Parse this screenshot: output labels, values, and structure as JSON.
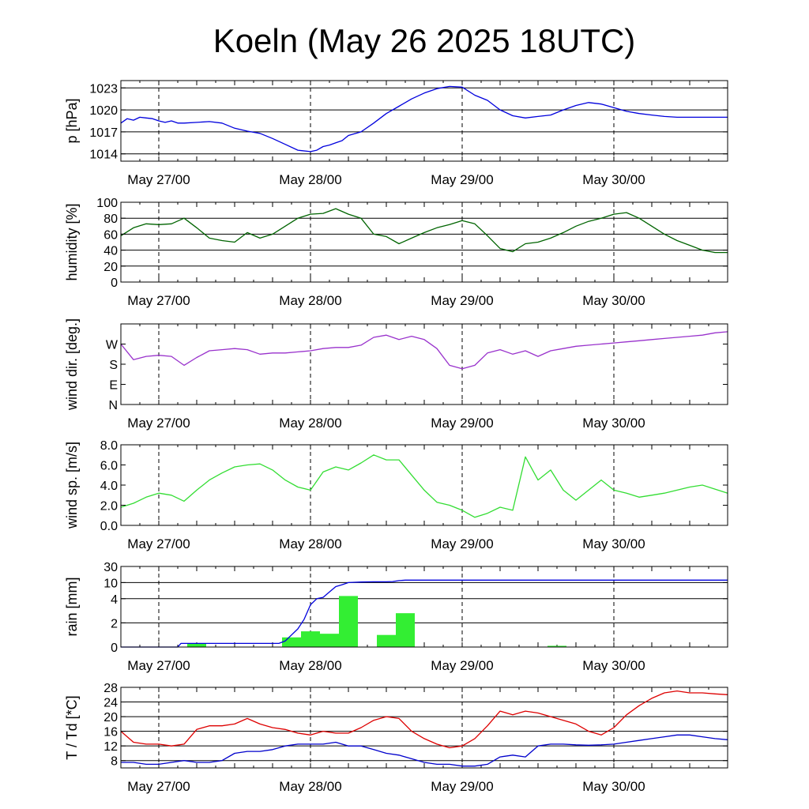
{
  "title": "Koeln (May 26 2025 18UTC)",
  "x_tick_labels": [
    "May 27/00",
    "May 28/00",
    "May 29/00",
    "May 30/00"
  ],
  "chart_data": [
    {
      "type": "line",
      "ylabel": "p [hPa]",
      "ylim": [
        1013,
        1024
      ],
      "yticks": [
        1014,
        1017,
        1020,
        1023
      ],
      "ytick_labels": [
        "1014",
        "1017",
        "1020",
        "1023"
      ],
      "grid": true,
      "x_unit": "hours from May 26 18UTC",
      "xlim": [
        0,
        96
      ],
      "x": [
        0,
        1,
        2,
        3,
        4,
        5,
        6,
        7,
        8,
        9,
        10,
        12,
        14,
        16,
        18,
        20,
        22,
        24,
        26,
        28,
        30,
        31,
        32,
        33,
        34,
        35,
        36,
        38,
        40,
        42,
        44,
        46,
        48,
        50,
        52,
        54,
        56,
        58,
        60,
        62,
        64,
        66,
        68,
        70,
        72,
        74,
        76,
        78,
        80,
        82,
        84,
        86,
        88,
        90,
        92,
        94,
        96
      ],
      "series": [
        {
          "color": "#0000dd",
          "values": [
            1018.2,
            1018.8,
            1018.6,
            1019.0,
            1018.9,
            1018.8,
            1018.5,
            1018.3,
            1018.5,
            1018.2,
            1018.2,
            1018.3,
            1018.4,
            1018.2,
            1017.5,
            1017.1,
            1016.8,
            1016.1,
            1015.3,
            1014.5,
            1014.3,
            1014.5,
            1015.0,
            1015.2,
            1015.5,
            1015.8,
            1016.5,
            1017.0,
            1018.2,
            1019.5,
            1020.5,
            1021.5,
            1022.3,
            1022.9,
            1023.2,
            1023.1,
            1022.0,
            1021.3,
            1020.0,
            1019.2,
            1018.9,
            1019.1,
            1019.3,
            1020.0,
            1020.6,
            1021.0,
            1020.8,
            1020.3,
            1019.8,
            1019.5,
            1019.3,
            1019.1,
            1019.0,
            1019.0,
            1019.0,
            1019.0,
            1019.0
          ]
        }
      ]
    },
    {
      "type": "line",
      "ylabel": "humidity [%]",
      "ylim": [
        0,
        100
      ],
      "yticks": [
        0,
        20,
        40,
        60,
        80,
        100
      ],
      "ytick_labels": [
        "0",
        "20",
        "40",
        "60",
        "80",
        "100"
      ],
      "grid": true,
      "x_unit": "hours from May 26 18UTC",
      "xlim": [
        0,
        96
      ],
      "x": [
        0,
        2,
        4,
        6,
        8,
        10,
        12,
        14,
        16,
        18,
        20,
        22,
        24,
        26,
        28,
        30,
        32,
        34,
        36,
        38,
        40,
        42,
        44,
        46,
        48,
        50,
        52,
        54,
        56,
        58,
        60,
        62,
        64,
        66,
        68,
        70,
        72,
        74,
        76,
        78,
        80,
        82,
        84,
        86,
        88,
        90,
        92,
        94,
        96
      ],
      "series": [
        {
          "color": "#006400",
          "values": [
            58,
            68,
            73,
            72,
            73,
            80,
            68,
            55,
            52,
            50,
            62,
            55,
            60,
            70,
            80,
            85,
            86,
            92,
            85,
            80,
            60,
            57,
            48,
            55,
            62,
            68,
            72,
            77,
            73,
            58,
            42,
            38,
            48,
            50,
            55,
            62,
            70,
            76,
            80,
            85,
            87,
            80,
            70,
            60,
            52,
            46,
            40,
            37,
            37
          ]
        }
      ]
    },
    {
      "type": "line",
      "ylabel": "wind dir. [deg.]",
      "ylim": [
        0,
        360
      ],
      "yticks": [
        0,
        90,
        180,
        270
      ],
      "ytick_labels": [
        "N",
        "E",
        "S",
        "W"
      ],
      "grid": false,
      "x_unit": "hours from May 26 18UTC",
      "xlim": [
        0,
        96
      ],
      "x": [
        0,
        2,
        4,
        6,
        8,
        10,
        12,
        14,
        16,
        18,
        20,
        22,
        24,
        26,
        28,
        30,
        32,
        34,
        36,
        38,
        40,
        42,
        44,
        46,
        48,
        50,
        52,
        54,
        56,
        58,
        60,
        62,
        64,
        66,
        68,
        70,
        72,
        74,
        76,
        78,
        80,
        82,
        84,
        86,
        88,
        90,
        92,
        94,
        96
      ],
      "series": [
        {
          "color": "#9932cc",
          "values": [
            270,
            200,
            215,
            220,
            215,
            175,
            210,
            240,
            245,
            250,
            245,
            225,
            230,
            230,
            235,
            240,
            250,
            255,
            255,
            265,
            300,
            310,
            290,
            305,
            290,
            250,
            175,
            160,
            175,
            230,
            245,
            225,
            240,
            215,
            240,
            250,
            260,
            265,
            270,
            275,
            280,
            285,
            290,
            295,
            300,
            305,
            310,
            320,
            325
          ]
        }
      ]
    },
    {
      "type": "line",
      "ylabel": "wind sp. [m/s]",
      "ylim": [
        0,
        8
      ],
      "yticks": [
        0,
        2,
        4,
        6,
        8
      ],
      "ytick_labels": [
        "0.0",
        "2.0",
        "4.0",
        "6.0",
        "8.0"
      ],
      "grid": false,
      "x_unit": "hours from May 26 18UTC",
      "xlim": [
        0,
        96
      ],
      "x": [
        0,
        2,
        4,
        6,
        8,
        10,
        12,
        14,
        16,
        18,
        20,
        22,
        24,
        26,
        28,
        30,
        32,
        34,
        36,
        38,
        40,
        42,
        44,
        46,
        48,
        50,
        52,
        54,
        56,
        58,
        60,
        62,
        64,
        66,
        68,
        70,
        72,
        74,
        76,
        78,
        80,
        82,
        84,
        86,
        88,
        90,
        92,
        94,
        96
      ],
      "series": [
        {
          "color": "#33dd33",
          "values": [
            1.8,
            2.2,
            2.8,
            3.2,
            3.0,
            2.4,
            3.5,
            4.5,
            5.2,
            5.8,
            6.0,
            6.1,
            5.5,
            4.5,
            3.8,
            3.5,
            5.3,
            5.8,
            5.5,
            6.2,
            7.0,
            6.5,
            6.5,
            5.0,
            3.5,
            2.3,
            2.0,
            1.5,
            0.8,
            1.2,
            1.8,
            1.5,
            6.8,
            4.5,
            5.5,
            3.5,
            2.5,
            3.5,
            4.5,
            3.5,
            3.2,
            2.8,
            3.0,
            3.2,
            3.5,
            3.8,
            4.0,
            3.6,
            3.2
          ]
        }
      ]
    },
    {
      "type": "bar",
      "ylabel": "rain [mm]",
      "ylim": [
        0,
        30
      ],
      "yticks": [
        0,
        2,
        4,
        10,
        30
      ],
      "ytick_labels": [
        "0",
        "2",
        "4",
        "10",
        "30"
      ],
      "grid": true,
      "x_unit": "hours from May 26 18UTC",
      "xlim": [
        0,
        96
      ],
      "bars": [
        {
          "x0": 10.5,
          "x1": 13.5,
          "value": 0.3
        },
        {
          "x0": 25.5,
          "x1": 28.5,
          "value": 0.8
        },
        {
          "x0": 28.5,
          "x1": 31.5,
          "value": 1.3
        },
        {
          "x0": 31.5,
          "x1": 34.5,
          "value": 1.1
        },
        {
          "x0": 34.5,
          "x1": 37.5,
          "value": 5.0
        },
        {
          "x0": 40.5,
          "x1": 43.5,
          "value": 1.0
        },
        {
          "x0": 43.5,
          "x1": 46.5,
          "value": 2.8
        },
        {
          "x0": 67.5,
          "x1": 70.5,
          "value": 0.1
        }
      ],
      "bar_color": "#33ee33",
      "cumulative": {
        "color": "#0000dd",
        "x": [
          0,
          9,
          9.5,
          25,
          26,
          27,
          28,
          29,
          30,
          31,
          32,
          33,
          34,
          35,
          36,
          37,
          38,
          39,
          40,
          42,
          43,
          44,
          45,
          70,
          96
        ],
        "values": [
          0,
          0,
          0.3,
          0.3,
          0.5,
          1.0,
          1.5,
          2.3,
          3.5,
          4.0,
          4.5,
          6.5,
          8.5,
          9.2,
          10.0,
          10.4,
          10.7,
          10.9,
          11.0,
          11.0,
          11.3,
          12.5,
          13.0,
          13.0,
          13.0
        ]
      }
    },
    {
      "type": "line",
      "ylabel": "T / Td [*C]",
      "ylim": [
        6,
        28
      ],
      "yticks": [
        8,
        12,
        16,
        20,
        24,
        28
      ],
      "ytick_labels": [
        "8",
        "12",
        "16",
        "20",
        "24",
        "28"
      ],
      "grid": true,
      "x_unit": "hours from May 26 18UTC",
      "xlim": [
        0,
        96
      ],
      "x": [
        0,
        2,
        4,
        6,
        8,
        10,
        12,
        14,
        16,
        18,
        20,
        22,
        24,
        26,
        28,
        30,
        32,
        34,
        36,
        38,
        40,
        42,
        44,
        46,
        48,
        50,
        52,
        54,
        56,
        58,
        60,
        62,
        64,
        66,
        68,
        70,
        72,
        74,
        76,
        78,
        80,
        82,
        84,
        86,
        88,
        90,
        92,
        94,
        96
      ],
      "series": [
        {
          "color": "#dd0000",
          "values": [
            16,
            13,
            12.5,
            12.5,
            12,
            12.5,
            16.5,
            17.5,
            17.5,
            18,
            19.5,
            18,
            17,
            16.5,
            15.5,
            15,
            16,
            15.5,
            15.5,
            17,
            19,
            20,
            19.5,
            16,
            14,
            12.5,
            11.5,
            12,
            14,
            17.5,
            21.5,
            20.5,
            21.5,
            21,
            20,
            19,
            18,
            16,
            15,
            17,
            20.5,
            23,
            25,
            26.5,
            27,
            26.5,
            26.5,
            26.2,
            26
          ]
        },
        {
          "color": "#0000cc",
          "values": [
            7.5,
            7.5,
            7,
            7,
            7.5,
            8,
            7.5,
            7.5,
            8,
            10,
            10.5,
            10.5,
            11,
            12,
            12.5,
            12.5,
            12.5,
            13,
            12,
            12,
            11,
            10,
            9.5,
            8.5,
            7.5,
            7,
            7,
            6.5,
            6.5,
            7,
            9,
            9.5,
            9,
            12,
            12.5,
            12.5,
            12.3,
            12.2,
            12.3,
            12.5,
            13,
            13.5,
            14,
            14.5,
            15,
            15,
            14.5,
            14,
            13.7
          ]
        }
      ]
    }
  ]
}
